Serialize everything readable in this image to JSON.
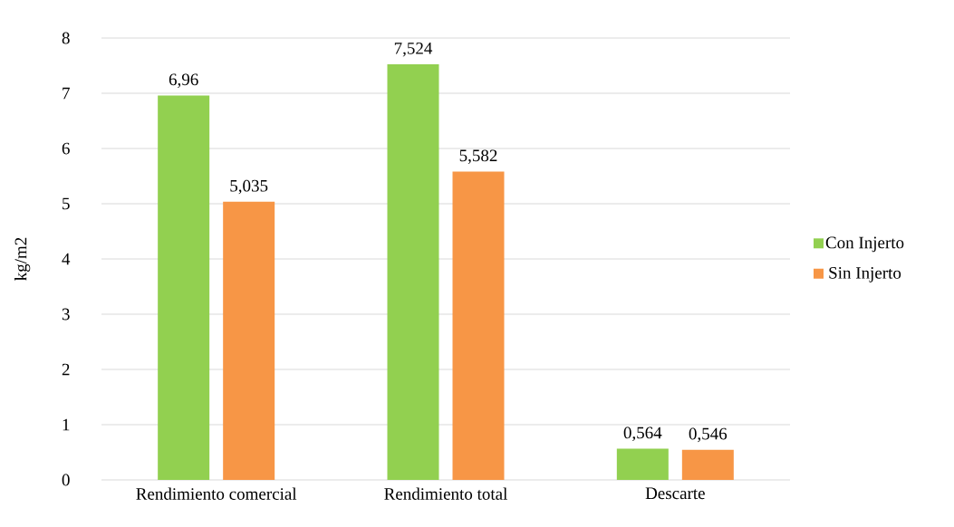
{
  "chart_data": {
    "type": "bar",
    "ylabel": "kg/m2",
    "categories": [
      "Rendimiento comercial",
      "Rendimiento total",
      "Descarte"
    ],
    "series": [
      {
        "name": "Con Injerto",
        "color": "#92d050",
        "values": [
          6.96,
          7.524,
          0.564
        ],
        "value_labels": [
          "6,96",
          "7,524",
          "0,564"
        ]
      },
      {
        "name": "Sin Injerto",
        "color": "#f79646",
        "values": [
          5.035,
          5.582,
          0.546
        ],
        "value_labels": [
          "5,035",
          "5,582",
          "0,546"
        ]
      }
    ],
    "ylim": [
      0,
      8
    ],
    "yticks": [
      0,
      1,
      2,
      3,
      4,
      5,
      6,
      7,
      8
    ],
    "grid": "y",
    "legend": "right"
  }
}
